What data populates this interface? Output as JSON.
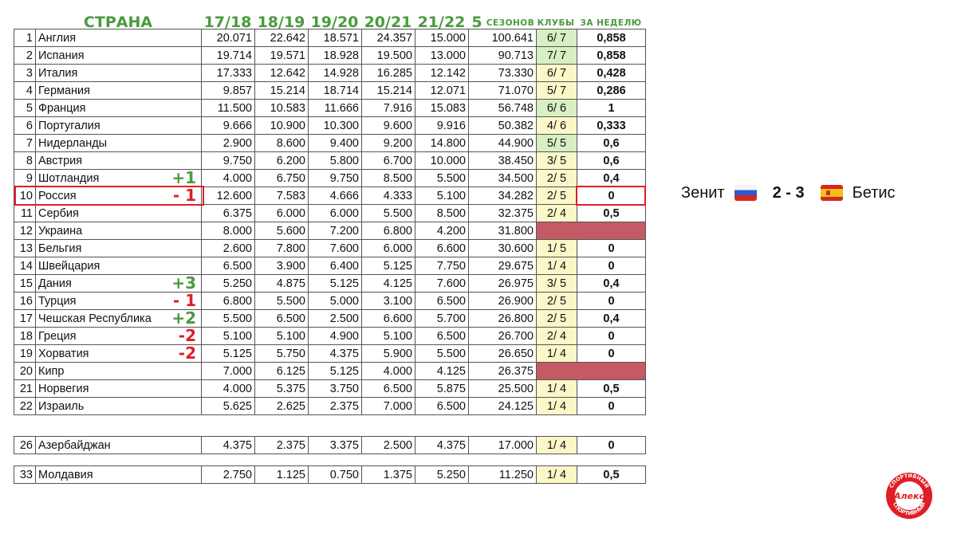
{
  "headers": {
    "country": "СТРАНА",
    "s1": "17/18",
    "s2": "18/19",
    "s3": "19/20",
    "s4": "20/21",
    "s5": "21/22",
    "five": "5",
    "seasons": "СЕЗОНОВ",
    "clubs": "КЛУБЫ",
    "week": "ЗА НЕДЕЛЮ"
  },
  "rows": [
    {
      "rank": "1",
      "name": "Англия",
      "v1": "20.071",
      "v2": "22.642",
      "v3": "18.571",
      "v4": "24.357",
      "v5": "15.000",
      "total": "100.641",
      "clubs": "6/ 7",
      "week": "0,858",
      "delta": "",
      "clubs_bg": "green",
      "week_bg": "none"
    },
    {
      "rank": "2",
      "name": "Испания",
      "v1": "19.714",
      "v2": "19.571",
      "v3": "18.928",
      "v4": "19.500",
      "v5": "13.000",
      "total": "90.713",
      "clubs": "7/ 7",
      "week": "0,858",
      "delta": "",
      "clubs_bg": "green",
      "week_bg": "none"
    },
    {
      "rank": "3",
      "name": "Италия",
      "v1": "17.333",
      "v2": "12.642",
      "v3": "14.928",
      "v4": "16.285",
      "v5": "12.142",
      "total": "73.330",
      "clubs": "6/ 7",
      "week": "0,428",
      "delta": "",
      "clubs_bg": "yellow",
      "week_bg": "none"
    },
    {
      "rank": "4",
      "name": "Германия",
      "v1": "9.857",
      "v2": "15.214",
      "v3": "18.714",
      "v4": "15.214",
      "v5": "12.071",
      "total": "71.070",
      "clubs": "5/ 7",
      "week": "0,286",
      "delta": "",
      "clubs_bg": "yellow",
      "week_bg": "none"
    },
    {
      "rank": "5",
      "name": "Франция",
      "v1": "11.500",
      "v2": "10.583",
      "v3": "11.666",
      "v4": "7.916",
      "v5": "15.083",
      "total": "56.748",
      "clubs": "6/ 6",
      "week": "1",
      "delta": "",
      "clubs_bg": "green",
      "week_bg": "none"
    },
    {
      "rank": "6",
      "name": "Португалия",
      "v1": "9.666",
      "v2": "10.900",
      "v3": "10.300",
      "v4": "9.600",
      "v5": "9.916",
      "total": "50.382",
      "clubs": "4/ 6",
      "week": "0,333",
      "delta": "",
      "clubs_bg": "yellow",
      "week_bg": "none"
    },
    {
      "rank": "7",
      "name": "Нидерланды",
      "v1": "2.900",
      "v2": "8.600",
      "v3": "9.400",
      "v4": "9.200",
      "v5": "14.800",
      "total": "44.900",
      "clubs": "5/ 5",
      "week": "0,6",
      "delta": "",
      "clubs_bg": "green",
      "week_bg": "none"
    },
    {
      "rank": "8",
      "name": "Австрия",
      "v1": "9.750",
      "v2": "6.200",
      "v3": "5.800",
      "v4": "6.700",
      "v5": "10.000",
      "total": "38.450",
      "clubs": "3/ 5",
      "week": "0,6",
      "delta": "",
      "clubs_bg": "yellow",
      "week_bg": "none"
    },
    {
      "rank": "9",
      "name": "Шотландия",
      "v1": "4.000",
      "v2": "6.750",
      "v3": "9.750",
      "v4": "8.500",
      "v5": "5.500",
      "total": "34.500",
      "clubs": "2/ 5",
      "week": "0,4",
      "delta": "+1",
      "delta_dir": "up",
      "clubs_bg": "yellow",
      "week_bg": "none"
    },
    {
      "rank": "10",
      "name": "Россия",
      "v1": "12.600",
      "v2": "7.583",
      "v3": "4.666",
      "v4": "4.333",
      "v5": "5.100",
      "total": "34.282",
      "clubs": "2/ 5",
      "week": "0",
      "delta": "- 1",
      "delta_dir": "down",
      "clubs_bg": "yellow",
      "week_bg": "none"
    },
    {
      "rank": "11",
      "name": "Сербия",
      "v1": "6.375",
      "v2": "6.000",
      "v3": "6.000",
      "v4": "5.500",
      "v5": "8.500",
      "total": "32.375",
      "clubs": "2/ 4",
      "week": "0,5",
      "delta": "",
      "clubs_bg": "yellow",
      "week_bg": "none"
    },
    {
      "rank": "12",
      "name": "Украина",
      "v1": "8.000",
      "v2": "5.600",
      "v3": "7.200",
      "v4": "6.800",
      "v5": "4.200",
      "total": "31.800",
      "clubs": "",
      "week": "",
      "delta": "",
      "clubs_bg": "blocked",
      "week_bg": "blocked"
    },
    {
      "rank": "13",
      "name": "Бельгия",
      "v1": "2.600",
      "v2": "7.800",
      "v3": "7.600",
      "v4": "6.000",
      "v5": "6.600",
      "total": "30.600",
      "clubs": "1/ 5",
      "week": "0",
      "delta": "",
      "clubs_bg": "yellow",
      "week_bg": "none"
    },
    {
      "rank": "14",
      "name": "Швейцария",
      "v1": "6.500",
      "v2": "3.900",
      "v3": "6.400",
      "v4": "5.125",
      "v5": "7.750",
      "total": "29.675",
      "clubs": "1/ 4",
      "week": "0",
      "delta": "",
      "clubs_bg": "yellow",
      "week_bg": "none"
    },
    {
      "rank": "15",
      "name": "Дания",
      "v1": "5.250",
      "v2": "4.875",
      "v3": "5.125",
      "v4": "4.125",
      "v5": "7.600",
      "total": "26.975",
      "clubs": "3/ 5",
      "week": "0,4",
      "delta": "+3",
      "delta_dir": "up",
      "clubs_bg": "yellow",
      "week_bg": "none"
    },
    {
      "rank": "16",
      "name": "Турция",
      "v1": "6.800",
      "v2": "5.500",
      "v3": "5.000",
      "v4": "3.100",
      "v5": "6.500",
      "total": "26.900",
      "clubs": "2/ 5",
      "week": "0",
      "delta": "- 1",
      "delta_dir": "down",
      "clubs_bg": "yellow",
      "week_bg": "none"
    },
    {
      "rank": "17",
      "name": "Чешская Республика",
      "v1": "5.500",
      "v2": "6.500",
      "v3": "2.500",
      "v4": "6.600",
      "v5": "5.700",
      "total": "26.800",
      "clubs": "2/ 5",
      "week": "0,4",
      "delta": "+2",
      "delta_dir": "up",
      "clubs_bg": "yellow",
      "week_bg": "none"
    },
    {
      "rank": "18",
      "name": "Греция",
      "v1": "5.100",
      "v2": "5.100",
      "v3": "4.900",
      "v4": "5.100",
      "v5": "6.500",
      "total": "26.700",
      "clubs": "2/ 4",
      "week": "0",
      "delta": "-2",
      "delta_dir": "down",
      "clubs_bg": "yellow",
      "week_bg": "none"
    },
    {
      "rank": "19",
      "name": "Хорватия",
      "v1": "5.125",
      "v2": "5.750",
      "v3": "4.375",
      "v4": "5.900",
      "v5": "5.500",
      "total": "26.650",
      "clubs": "1/ 4",
      "week": "0",
      "delta": "-2",
      "delta_dir": "down",
      "clubs_bg": "yellow",
      "week_bg": "none"
    },
    {
      "rank": "20",
      "name": "Кипр",
      "v1": "7.000",
      "v2": "6.125",
      "v3": "5.125",
      "v4": "4.000",
      "v5": "4.125",
      "total": "26.375",
      "clubs": "",
      "week": "",
      "delta": "",
      "clubs_bg": "blocked",
      "week_bg": "blocked"
    },
    {
      "rank": "21",
      "name": "Норвегия",
      "v1": "4.000",
      "v2": "5.375",
      "v3": "3.750",
      "v4": "6.500",
      "v5": "5.875",
      "total": "25.500",
      "clubs": "1/ 4",
      "week": "0,5",
      "delta": "",
      "clubs_bg": "yellow",
      "week_bg": "none"
    },
    {
      "rank": "22",
      "name": "Израиль",
      "v1": "5.625",
      "v2": "2.625",
      "v3": "2.375",
      "v4": "7.000",
      "v5": "6.500",
      "total": "24.125",
      "clubs": "1/ 4",
      "week": "0",
      "delta": "",
      "clubs_bg": "yellow",
      "week_bg": "none"
    }
  ],
  "extra_rows": [
    {
      "rank": "26",
      "name": "Азербайджан",
      "v1": "4.375",
      "v2": "2.375",
      "v3": "3.375",
      "v4": "2.500",
      "v5": "4.375",
      "total": "17.000",
      "clubs": "1/ 4",
      "week": "0",
      "clubs_bg": "yellow"
    },
    {
      "rank": "33",
      "name": "Молдавия",
      "v1": "2.750",
      "v2": "1.125",
      "v3": "0.750",
      "v4": "1.375",
      "v5": "5.250",
      "total": "11.250",
      "clubs": "1/ 4",
      "week": "0,5",
      "clubs_bg": "yellow"
    }
  ],
  "match": {
    "home": "Зенит",
    "home_flag": "russia-flag-icon",
    "score": "2 - 3",
    "away": "Бетис",
    "away_flag": "spain-flag-icon"
  },
  "logo": {
    "text_top": "СПОРТИВНЫЙ",
    "text_center": "Алекс",
    "text_bottom": "СПОРТИВНЫЙ",
    "color": "#e01e26"
  },
  "colors": {
    "header_green": "#4a9a3e",
    "highlight_red": "#e01e26",
    "clubs_green": "#d7efc2",
    "clubs_yellow": "#fbf7c8",
    "blocked": "#c55a65"
  }
}
